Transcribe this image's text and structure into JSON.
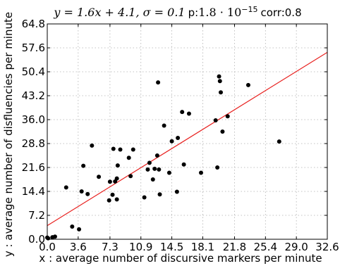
{
  "chart_data": {
    "type": "scatter",
    "title_parts": {
      "equation": "y = 1.6x + 4.1, σ = 0.1",
      "p_label": "p:",
      "p_value": "1.8 · 10",
      "p_exponent": "−15",
      "corr_label": "corr:",
      "corr_value": "0.8"
    },
    "xlabel": "x : average number of discursive markers per minute",
    "ylabel": "y : average number of disfluencies per minute",
    "xlim": [
      0,
      32.6
    ],
    "ylim": [
      0,
      64.8
    ],
    "x_ticks": [
      0.0,
      3.6,
      7.3,
      10.9,
      14.5,
      18.1,
      21.8,
      25.4,
      29.0,
      32.6
    ],
    "x_tick_labels": [
      "0.0",
      "3.6",
      "7.3",
      "10.9",
      "14.5",
      "18.1",
      "21.8",
      "25.4",
      "29.0",
      "32.6"
    ],
    "y_ticks": [
      0.0,
      7.2,
      14.4,
      21.6,
      28.8,
      36.0,
      43.2,
      50.4,
      57.6,
      64.8
    ],
    "y_tick_labels": [
      "0.0",
      "7.2",
      "14.4",
      "21.6",
      "28.8",
      "36.0",
      "43.2",
      "50.4",
      "57.6",
      "64.8"
    ],
    "grid": true,
    "fit": {
      "slope": 1.6,
      "intercept": 4.1,
      "color": "#e8211f"
    },
    "point_color": "#000000",
    "points": [
      {
        "x": 0.0,
        "y": 0.5
      },
      {
        "x": 0.1,
        "y": 0.3
      },
      {
        "x": 0.6,
        "y": 0.6
      },
      {
        "x": 0.9,
        "y": 0.8
      },
      {
        "x": 2.2,
        "y": 15.6
      },
      {
        "x": 2.9,
        "y": 3.8
      },
      {
        "x": 3.7,
        "y": 3.0
      },
      {
        "x": 4.0,
        "y": 14.4
      },
      {
        "x": 4.2,
        "y": 22.1
      },
      {
        "x": 4.7,
        "y": 13.6
      },
      {
        "x": 5.2,
        "y": 28.2
      },
      {
        "x": 6.0,
        "y": 18.8
      },
      {
        "x": 7.2,
        "y": 11.7
      },
      {
        "x": 7.3,
        "y": 17.3
      },
      {
        "x": 7.6,
        "y": 13.4
      },
      {
        "x": 7.7,
        "y": 27.2
      },
      {
        "x": 7.9,
        "y": 17.4
      },
      {
        "x": 8.1,
        "y": 18.3
      },
      {
        "x": 8.1,
        "y": 12.0
      },
      {
        "x": 8.2,
        "y": 22.2
      },
      {
        "x": 8.5,
        "y": 27.0
      },
      {
        "x": 9.5,
        "y": 24.5
      },
      {
        "x": 9.7,
        "y": 19.0
      },
      {
        "x": 10.0,
        "y": 27.0
      },
      {
        "x": 11.3,
        "y": 12.6
      },
      {
        "x": 11.7,
        "y": 21.0
      },
      {
        "x": 11.9,
        "y": 23.0
      },
      {
        "x": 12.3,
        "y": 18.0
      },
      {
        "x": 12.5,
        "y": 21.2
      },
      {
        "x": 12.8,
        "y": 25.2
      },
      {
        "x": 12.9,
        "y": 47.2
      },
      {
        "x": 13.0,
        "y": 21.0
      },
      {
        "x": 13.1,
        "y": 13.5
      },
      {
        "x": 13.6,
        "y": 34.2
      },
      {
        "x": 14.2,
        "y": 20.0
      },
      {
        "x": 14.5,
        "y": 29.5
      },
      {
        "x": 15.1,
        "y": 14.3
      },
      {
        "x": 15.2,
        "y": 30.5
      },
      {
        "x": 15.7,
        "y": 38.3
      },
      {
        "x": 15.9,
        "y": 22.5
      },
      {
        "x": 16.5,
        "y": 37.8
      },
      {
        "x": 17.9,
        "y": 20.0
      },
      {
        "x": 19.6,
        "y": 35.8
      },
      {
        "x": 19.8,
        "y": 21.6
      },
      {
        "x": 20.0,
        "y": 49.0
      },
      {
        "x": 20.1,
        "y": 47.6
      },
      {
        "x": 20.2,
        "y": 44.2
      },
      {
        "x": 20.4,
        "y": 32.4
      },
      {
        "x": 21.0,
        "y": 37.0
      },
      {
        "x": 23.4,
        "y": 46.4
      },
      {
        "x": 27.0,
        "y": 29.4
      }
    ]
  }
}
